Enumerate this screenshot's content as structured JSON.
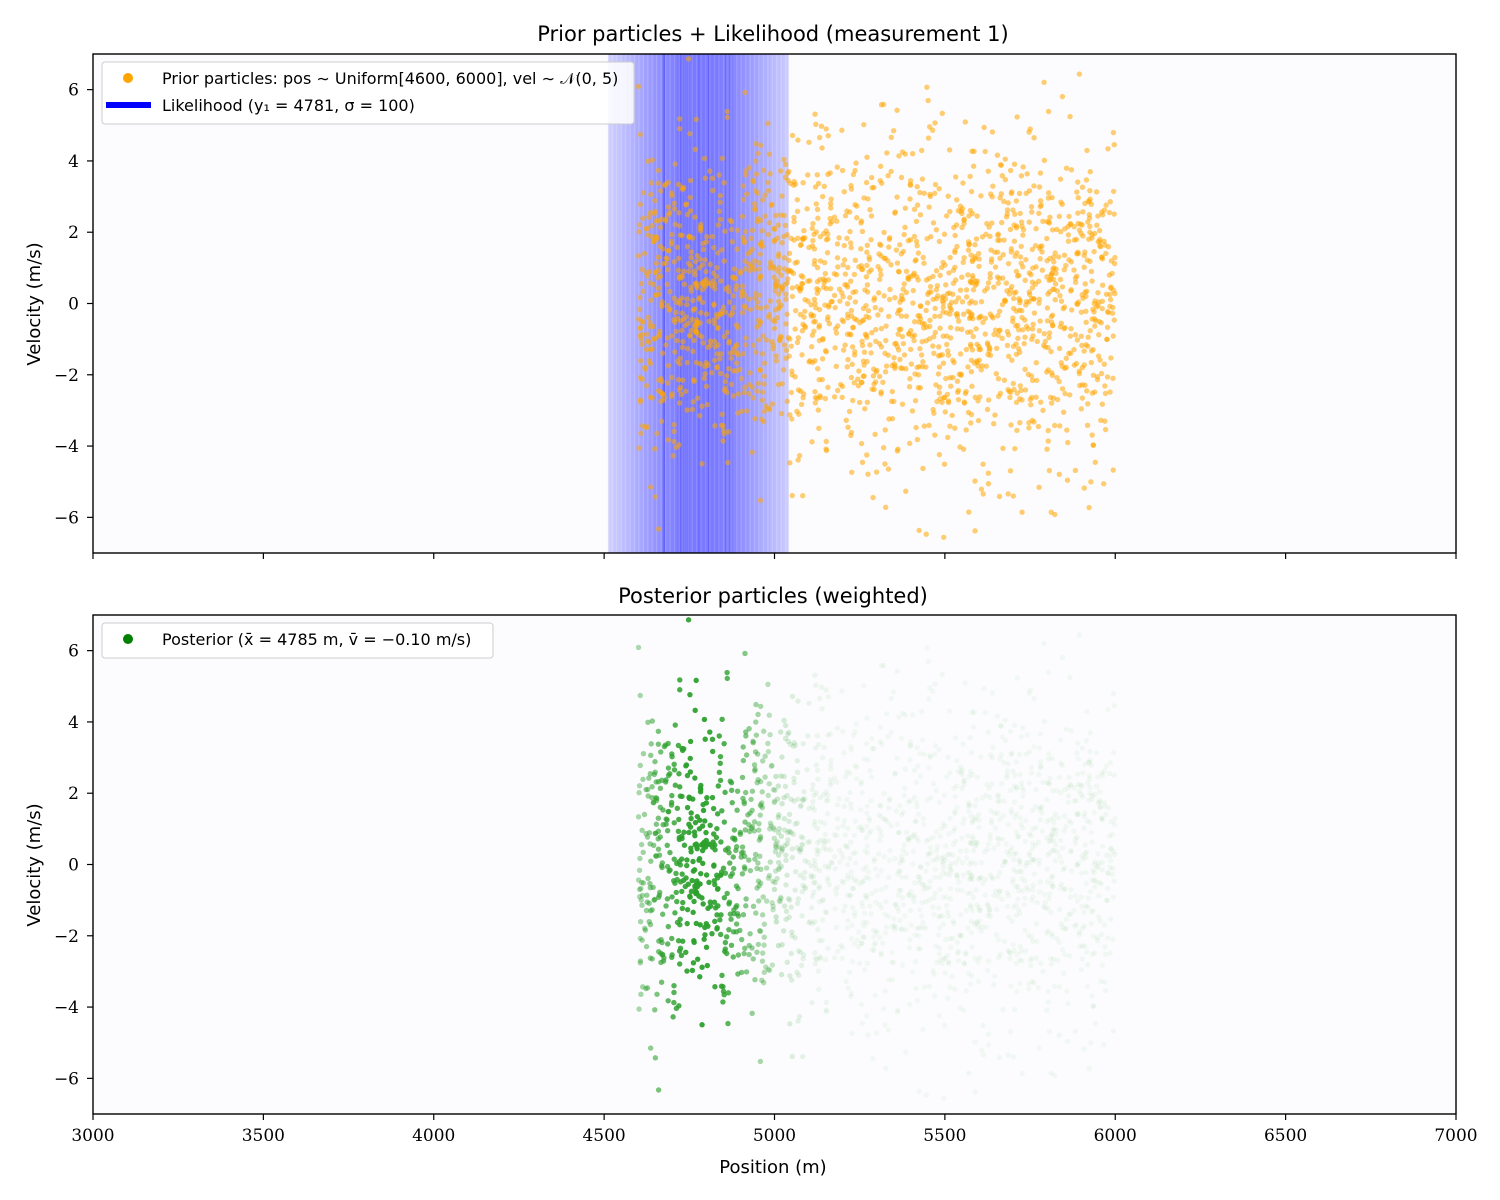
{
  "chart_data": [
    {
      "type": "scatter",
      "title": "Prior particles + Likelihood (measurement 1)",
      "xlabel": "",
      "ylabel": "Velocity (m/s)",
      "xlim": [
        3000,
        7000
      ],
      "ylim": [
        -7,
        7
      ],
      "x_ticks": [
        3000,
        3500,
        4000,
        4500,
        5000,
        5500,
        6000,
        6500,
        7000
      ],
      "x_tick_labels_shown": false,
      "y_ticks": [
        -6,
        -4,
        -2,
        0,
        2,
        4,
        6
      ],
      "y_tick_labels": [
        "−6",
        "−4",
        "−2",
        "0",
        "2",
        "4",
        "6"
      ],
      "grid": false,
      "legend_position": "upper-left",
      "series": [
        {
          "name": "Prior particles: pos ∼ Uniform[4600, 6000], vel ∼ 𝒩(0, 5)",
          "kind": "scatter",
          "color": "#ffa500",
          "particle_count": 2000,
          "position_range": [
            4600,
            6000
          ],
          "velocity_mean": 0,
          "velocity_variance": 5
        },
        {
          "name": "Likelihood (y₁ = 4781, σ = 100)",
          "kind": "vertical-band",
          "color": "#0000ff",
          "measurement": 4781,
          "sigma": 100
        }
      ]
    },
    {
      "type": "scatter",
      "title": "Posterior particles (weighted)",
      "xlabel": "Position (m)",
      "ylabel": "Velocity (m/s)",
      "xlim": [
        3000,
        7000
      ],
      "ylim": [
        -7,
        7
      ],
      "x_ticks": [
        3000,
        3500,
        4000,
        4500,
        5000,
        5500,
        6000,
        6500,
        7000
      ],
      "x_tick_labels": [
        "3000",
        "3500",
        "4000",
        "4500",
        "5000",
        "5500",
        "6000",
        "6500",
        "7000"
      ],
      "y_ticks": [
        -6,
        -4,
        -2,
        0,
        2,
        4,
        6
      ],
      "y_tick_labels": [
        "−6",
        "−4",
        "−2",
        "0",
        "2",
        "4",
        "6"
      ],
      "grid": false,
      "legend_position": "upper-left",
      "series": [
        {
          "name": "Posterior (x̄ = 4785 m, v̄ = −0.10 m/s)",
          "kind": "weighted-scatter",
          "color": "#008000",
          "mean_position": 4785,
          "mean_velocity": -0.1
        }
      ]
    }
  ]
}
